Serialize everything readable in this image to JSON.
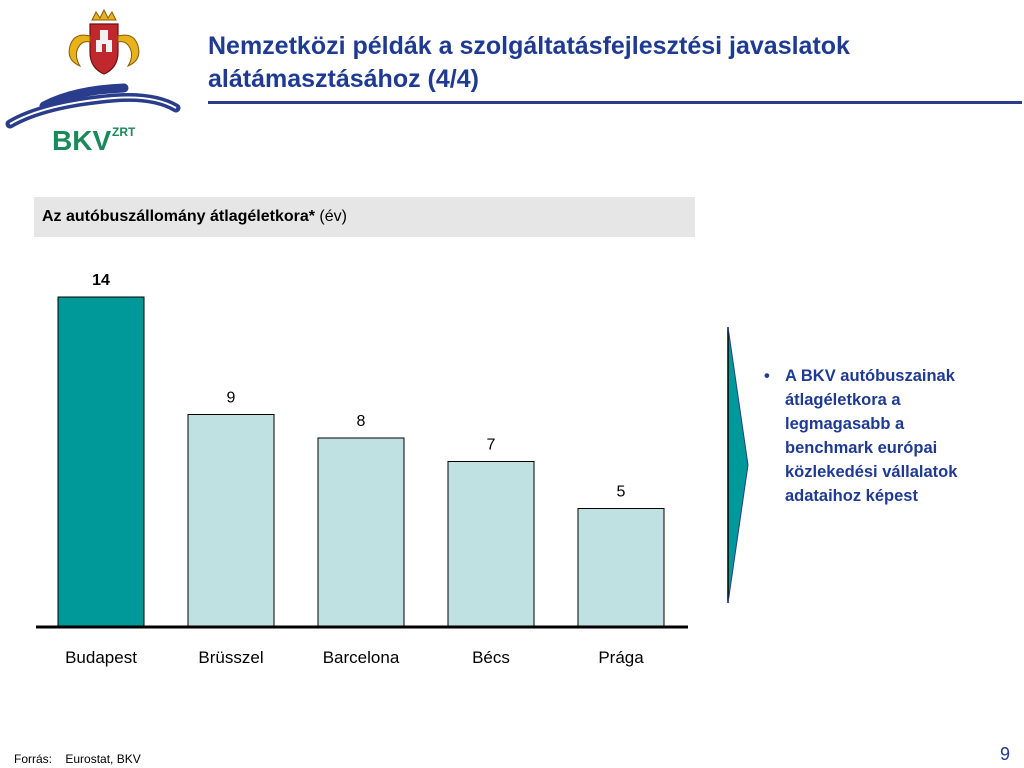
{
  "header": {
    "title": "Nemzetközi példák a szolgáltatásfejlesztési javaslatok alátámasztásához (4/4)",
    "logo_text": "BKV",
    "logo_superscript": "ZRT"
  },
  "chart_header": {
    "label_bold": "Az autóbuszállomány átlagéletkora*",
    "label_unit": "(év)"
  },
  "chart_data": {
    "type": "bar",
    "categories": [
      "Budapest",
      "Brüsszel",
      "Barcelona",
      "Bécs",
      "Prága"
    ],
    "values": [
      14,
      9,
      8,
      7,
      5
    ],
    "value_labels": [
      "14",
      "9",
      "8",
      "7",
      "5"
    ],
    "highlight_index": 0,
    "colors": {
      "highlight": "#009999",
      "normal": "#bfe1e1",
      "stroke": "#000000"
    },
    "title": "Az autóbuszállomány átlagéletkora* (év)",
    "xlabel": "",
    "ylabel": "",
    "ylim": [
      0,
      14
    ],
    "grid": false,
    "legend": "none"
  },
  "callout": {
    "bullet": "•",
    "text": "A BKV autóbuszainak átlagéletkora a legmagasabb a benchmark európai közlekedési vállalatok adataihoz képest"
  },
  "footer": {
    "source_label": "Forrás:",
    "source_value": "Eurostat, BKV",
    "page_number": "9"
  },
  "colors": {
    "title": "#1f3a93",
    "accent": "#009999",
    "logo_green": "#1a8a5a",
    "logo_blue": "#2a3c8c"
  }
}
